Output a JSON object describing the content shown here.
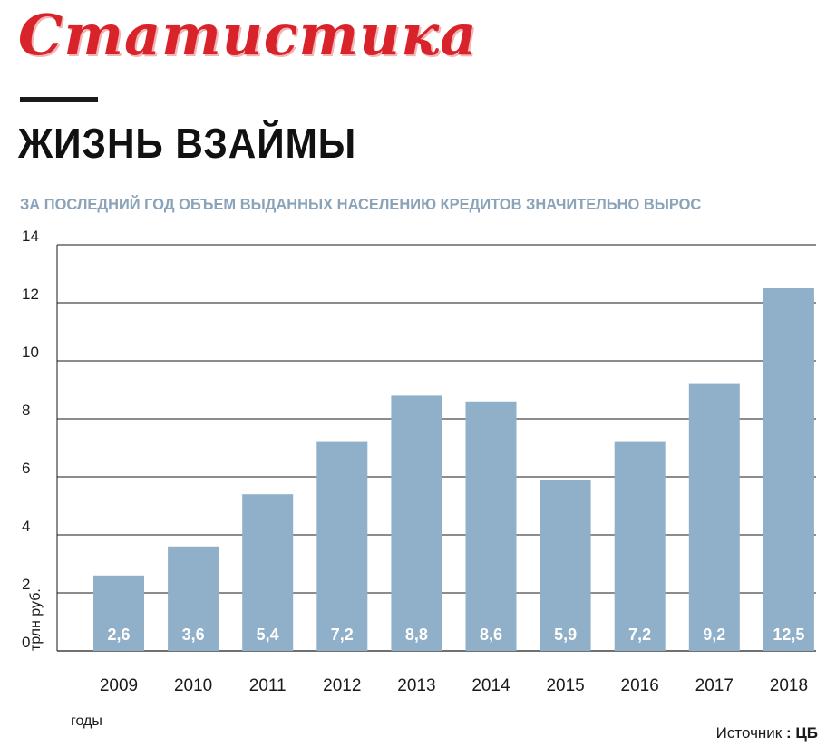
{
  "header": {
    "logo_text": "Статистика",
    "title": "ЖИЗНЬ ВЗАЙМЫ",
    "subtitle": "ЗА ПОСЛЕДНИЙ ГОД ОБЪЕМ ВЫДАННЫХ НАСЕЛЕНИЮ КРЕДИТОВ ЗНАЧИТЕЛЬНО ВЫРОС"
  },
  "source": {
    "label": "Источник",
    "separator": " : ",
    "value": "ЦБ"
  },
  "colors": {
    "logo": "#d8232a",
    "bar": "#8fb0c8",
    "subtitle": "#8aa3b8",
    "grid": "#1a1a1a"
  },
  "chart_data": {
    "type": "bar",
    "title": "ЖИЗНЬ ВЗАЙМЫ",
    "subtitle": "ЗА ПОСЛЕДНИЙ ГОД ОБЪЕМ ВЫДАННЫХ НАСЕЛЕНИЮ КРЕДИТОВ ЗНАЧИТЕЛЬНО ВЫРОС",
    "xlabel": "годы",
    "ylabel": "трлн руб.",
    "categories": [
      "2009",
      "2010",
      "2011",
      "2012",
      "2013",
      "2014",
      "2015",
      "2016",
      "2017",
      "2018"
    ],
    "values": [
      2.6,
      3.6,
      5.4,
      7.2,
      8.8,
      8.6,
      5.9,
      7.2,
      9.2,
      12.5
    ],
    "data_labels": [
      "2,6",
      "3,6",
      "5,4",
      "7,2",
      "8,8",
      "8,6",
      "5,9",
      "7,2",
      "9,2",
      "12,5"
    ],
    "ylim": [
      0,
      14
    ],
    "yticks": [
      0,
      2,
      4,
      6,
      8,
      10,
      12,
      14
    ],
    "grid": true,
    "legend": "none"
  }
}
